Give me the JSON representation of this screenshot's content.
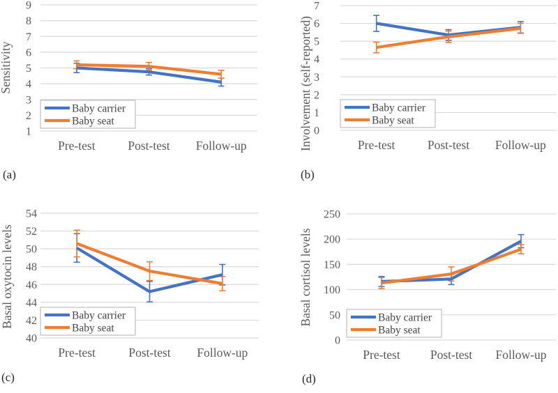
{
  "figure": {
    "background": "#ffffff",
    "grid_color": "#d9d9d9",
    "axis_text_color": "#595959",
    "panel_letter_color": "#262626",
    "legend_border_color": "#bfbfbf",
    "legend_text_color": "#444444",
    "series_colors": {
      "baby_carrier": "#4472c4",
      "baby_seat": "#ed7d31"
    },
    "legend_labels": [
      "Baby carrier",
      "Baby seat"
    ]
  },
  "chart_data": [
    {
      "id": "a",
      "panel_label": "(a)",
      "type": "line",
      "ylabel": "Sensitivity",
      "categories": [
        "Pre-test",
        "Post-test",
        "Follow-up"
      ],
      "ylim": [
        1,
        9
      ],
      "ytick_step": 1,
      "grid": true,
      "error_bars": true,
      "legend_position": "lower-left",
      "series": [
        {
          "name": "Baby carrier",
          "color": "#4472c4",
          "values": [
            5.0,
            4.75,
            4.1
          ],
          "errors": [
            0.3,
            0.2,
            0.25
          ]
        },
        {
          "name": "Baby seat",
          "color": "#ed7d31",
          "values": [
            5.2,
            5.1,
            4.6
          ],
          "errors": [
            0.25,
            0.25,
            0.25
          ]
        }
      ]
    },
    {
      "id": "b",
      "panel_label": "(b)",
      "type": "line",
      "ylabel": "Involvement (self-reported)",
      "categories": [
        "Pre-test",
        "Post-test",
        "Follow-up"
      ],
      "ylim": [
        0,
        7
      ],
      "ytick_step": 1,
      "grid": true,
      "error_bars": true,
      "legend_position": "lower-left",
      "series": [
        {
          "name": "Baby carrier",
          "color": "#4472c4",
          "values": [
            6.0,
            5.35,
            5.78
          ],
          "errors": [
            0.45,
            0.3,
            0.32
          ]
        },
        {
          "name": "Baby seat",
          "color": "#ed7d31",
          "values": [
            4.65,
            5.25,
            5.72
          ],
          "errors": [
            0.3,
            0.32,
            0.28
          ]
        }
      ]
    },
    {
      "id": "c",
      "panel_label": "(c)",
      "type": "line",
      "ylabel": "Basal oxytocin levels",
      "categories": [
        "Pre-test",
        "Post-test",
        "Follow-up"
      ],
      "ylim": [
        40,
        54
      ],
      "ytick_step": 2,
      "grid": true,
      "error_bars": true,
      "legend_position": "lower-left",
      "series": [
        {
          "name": "Baby carrier",
          "color": "#4472c4",
          "values": [
            50.1,
            45.2,
            47.1
          ],
          "errors": [
            1.6,
            1.15,
            1.15
          ]
        },
        {
          "name": "Baby seat",
          "color": "#ed7d31",
          "values": [
            50.6,
            47.5,
            46.1
          ],
          "errors": [
            1.5,
            1.05,
            0.8
          ]
        }
      ]
    },
    {
      "id": "d",
      "panel_label": "(d)",
      "type": "line",
      "ylabel": "Basal cortisol levels",
      "categories": [
        "Pre-test",
        "Post-test",
        "Follow-up"
      ],
      "ylim": [
        0,
        250
      ],
      "ytick_step": 50,
      "grid": true,
      "error_bars": true,
      "legend_position": "lower-left",
      "series": [
        {
          "name": "Baby carrier",
          "color": "#4472c4",
          "values": [
            116,
            121,
            196
          ],
          "errors": [
            10,
            11,
            13
          ]
        },
        {
          "name": "Baby seat",
          "color": "#ed7d31",
          "values": [
            113,
            131,
            180
          ],
          "errors": [
            11,
            14,
            9
          ]
        }
      ]
    }
  ]
}
